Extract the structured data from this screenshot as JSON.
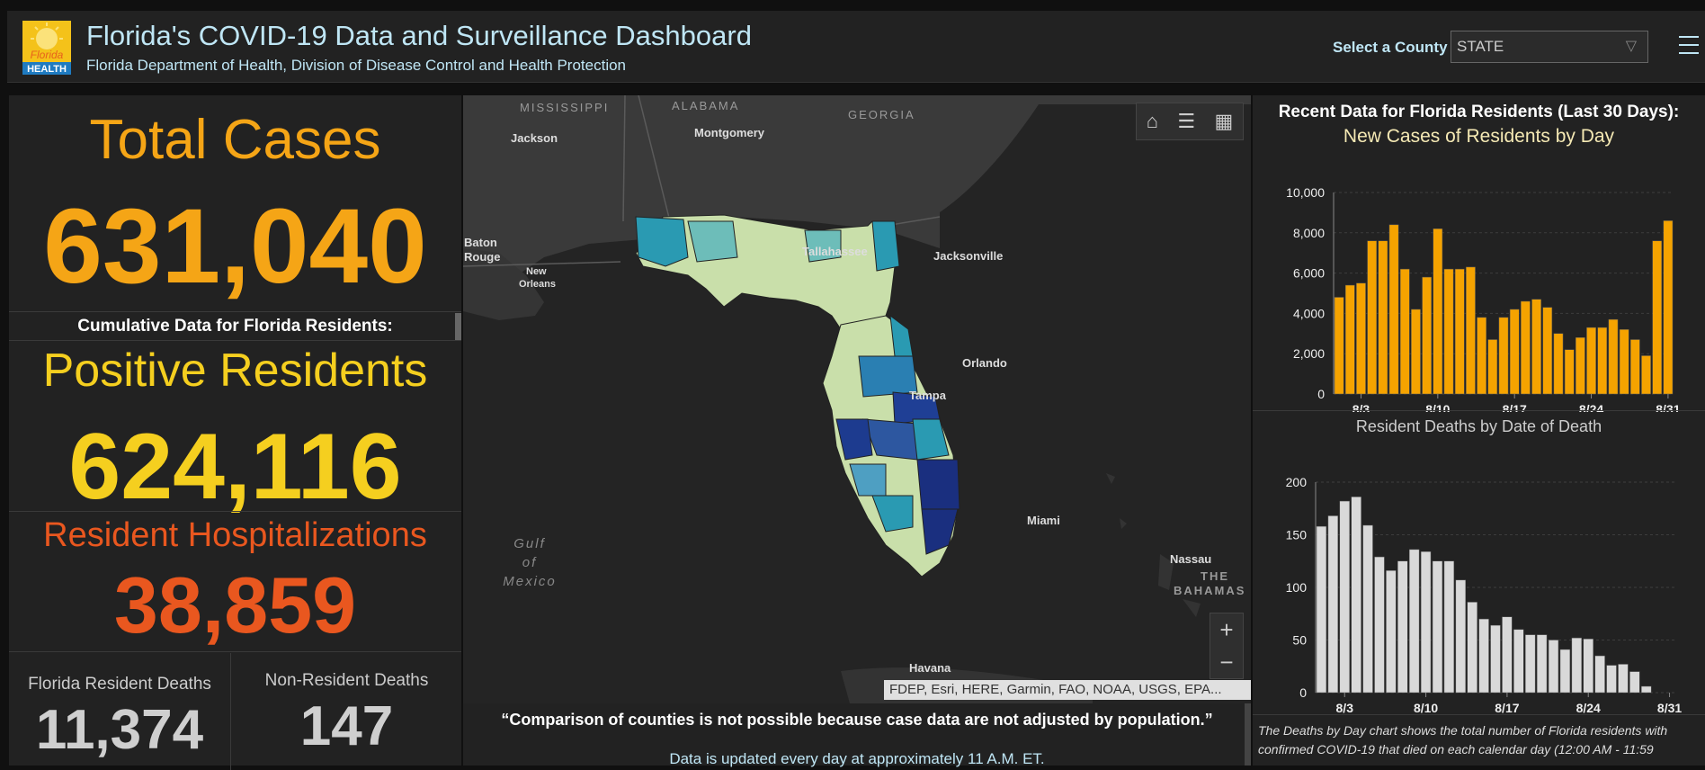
{
  "header": {
    "logo_text_top": "Florida",
    "logo_text_bottom": "HEALTH",
    "title": "Florida's COVID-19 Data and Surveillance Dashboard",
    "subtitle": "Florida Department of Health, Division of Disease Control and Health Protection",
    "select_label": "Select a County",
    "select_value": "STATE"
  },
  "left": {
    "total_cases_label": "Total Cases",
    "total_cases": "631,040",
    "cumulative_label": "Cumulative Data for Florida Residents:",
    "positive_label": "Positive Residents",
    "positive": "624,116",
    "hosp_label": "Resident Hospitalizations",
    "hosp": "38,859",
    "fl_deaths_label": "Florida Resident Deaths",
    "fl_deaths": "11,374",
    "nonres_deaths_label": "Non-Resident Deaths",
    "nonres_deaths": "147"
  },
  "map": {
    "labels": {
      "mississippi": "MISSISSIPPI",
      "alabama": "ALABAMA",
      "georgia": "GEORGIA",
      "jackson": "Jackson",
      "montgomery": "Montgomery",
      "baton_rouge_1": "Baton",
      "baton_rouge_2": "Rouge",
      "new_orleans_1": "New",
      "new_orleans_2": "Orleans",
      "tallahassee": "Tallahassee",
      "jacksonville": "Jacksonville",
      "orlando": "Orlando",
      "tampa": "Tampa",
      "miami": "Miami",
      "nassau": "Nassau",
      "bahamas_1": "THE",
      "bahamas_2": "BAHAMAS",
      "havana": "Havana",
      "gulf_1": "Gulf",
      "gulf_2": "of",
      "gulf_3": "Mexico"
    },
    "attribution": "FDEP, Esri, HERE, Garmin, FAO, NOAA, USGS, EPA...",
    "zoom_in": "+",
    "zoom_out": "−"
  },
  "bottom": {
    "quote": "“Comparison of counties is not possible because case data are not adjusted by population.”",
    "update": "Data is updated every day at approximately 11 A.M. ET."
  },
  "right": {
    "title": "Recent Data for Florida Residents (Last 30 Days):",
    "cases_chart_title": "New Cases of Residents by Day",
    "deaths_chart_title": "Resident Deaths by Date of Death",
    "note": "The Deaths by Day chart shows the total number of Florida residents with confirmed COVID-19 that died on each calendar day (12:00 AM - 11:59"
  },
  "colors": {
    "orange": "#f5a516",
    "yellow": "#f5cf1f",
    "red_orange": "#e9571f",
    "bar_orange": "#f5a300",
    "bar_gray": "#d9d9d9"
  },
  "chart_data": [
    {
      "type": "bar",
      "title": "New Cases of Residents by Day",
      "categories": [
        "8/1",
        "8/2",
        "8/3",
        "8/4",
        "8/5",
        "8/6",
        "8/7",
        "8/8",
        "8/9",
        "8/10",
        "8/11",
        "8/12",
        "8/13",
        "8/14",
        "8/15",
        "8/16",
        "8/17",
        "8/18",
        "8/19",
        "8/20",
        "8/21",
        "8/22",
        "8/23",
        "8/24",
        "8/25",
        "8/26",
        "8/27",
        "8/28",
        "8/29",
        "8/30",
        "8/31"
      ],
      "tick_labels": [
        "8/3",
        "8/10",
        "8/17",
        "8/24",
        "8/31"
      ],
      "values": [
        4800,
        5400,
        5500,
        7600,
        7600,
        8400,
        6200,
        4200,
        5800,
        8200,
        6200,
        6200,
        6300,
        3800,
        2700,
        3800,
        4200,
        4600,
        4700,
        4300,
        3000,
        2200,
        2800,
        3300,
        3300,
        3700,
        3200,
        2700,
        1900,
        7600,
        8600
      ],
      "ylim": [
        0,
        10000
      ],
      "yticks": [
        "0",
        "2,000",
        "4,000",
        "6,000",
        "8,000",
        "10,000"
      ]
    },
    {
      "type": "bar",
      "title": "Resident Deaths by Date of Death",
      "categories": [
        "8/1",
        "8/2",
        "8/3",
        "8/4",
        "8/5",
        "8/6",
        "8/7",
        "8/8",
        "8/9",
        "8/10",
        "8/11",
        "8/12",
        "8/13",
        "8/14",
        "8/15",
        "8/16",
        "8/17",
        "8/18",
        "8/19",
        "8/20",
        "8/21",
        "8/22",
        "8/23",
        "8/24",
        "8/25",
        "8/26",
        "8/27",
        "8/28",
        "8/29",
        "8/30",
        "8/31"
      ],
      "tick_labels": [
        "8/3",
        "8/10",
        "8/17",
        "8/24",
        "8/31"
      ],
      "values": [
        158,
        168,
        182,
        186,
        159,
        129,
        116,
        125,
        136,
        134,
        125,
        125,
        107,
        86,
        70,
        64,
        72,
        60,
        55,
        55,
        50,
        41,
        52,
        51,
        35,
        26,
        27,
        20,
        6,
        0,
        0
      ],
      "ylim": [
        0,
        200
      ],
      "yticks": [
        "0",
        "50",
        "100",
        "150",
        "200"
      ]
    }
  ]
}
